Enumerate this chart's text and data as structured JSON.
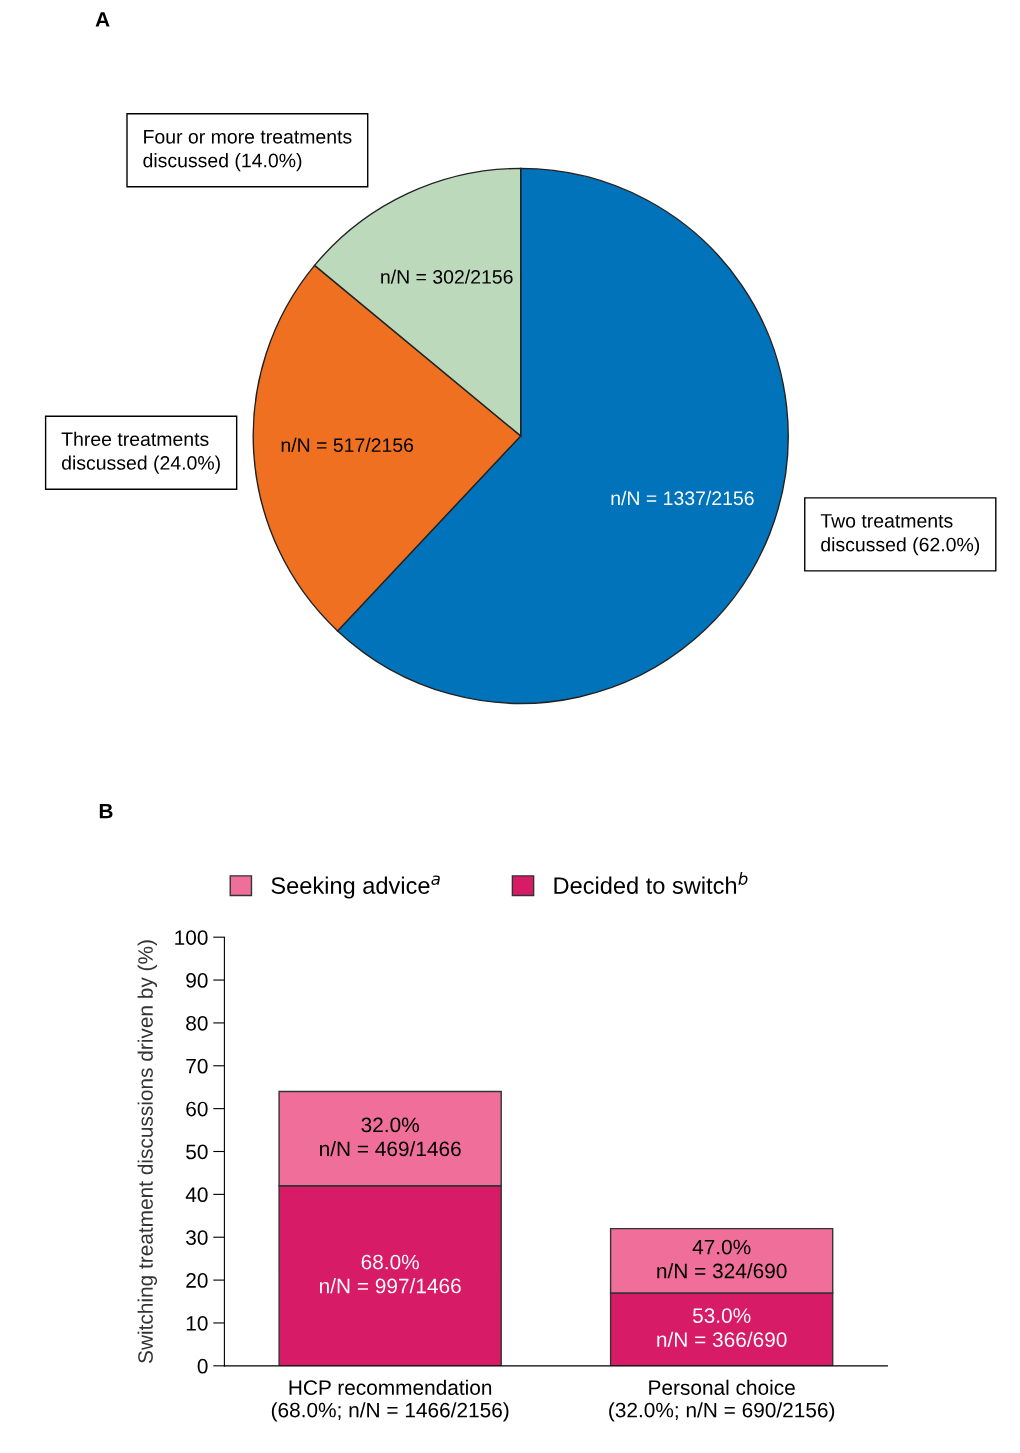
{
  "chart_data": [
    {
      "type": "pie",
      "title": "A",
      "categories": [
        "Two treatments discussed (62.0%)",
        "Three treatments discussed (24.0%)",
        "Four or more treatments discussed (14.0%)"
      ],
      "values": [
        62,
        24,
        14
      ],
      "colors": [
        "#0073bb",
        "#f07022",
        "#bcd9bb"
      ],
      "value_labels": [
        "n/N = 1337/2156",
        "n/N = 517/2156",
        "n/N = 302/2156"
      ]
    },
    {
      "type": "bar",
      "title": "B",
      "stacked": true,
      "legend": "top",
      "ylabel": "Switching treatment discussions driven by (%)",
      "categories": [
        "HCP recommendation\n(68.0%; n/N = 1466/2156)",
        "Personal choice\n(32.0%; n/N = 690/2156)"
      ],
      "ylim": [
        0,
        100
      ],
      "yticks": [
        0,
        10,
        20,
        30,
        40,
        50,
        60,
        70,
        80,
        90,
        100
      ],
      "series": [
        {
          "name": "Decided to switch$^{b}$",
          "color": "#d81b66",
          "values": [
            42,
            17
          ]
        },
        {
          "name": "Seeking advice$^{a}$",
          "color": "#f06f9a",
          "values": [
            22,
            15
          ]
        }
      ],
      "annotations": [
        "68.0%\nn/N = 997/1466",
        "53.0%\nn/N = 366/690",
        "32.0%\nn/N = 469/1466",
        "47.0%\nn/N = 324/690"
      ]
    }
  ]
}
